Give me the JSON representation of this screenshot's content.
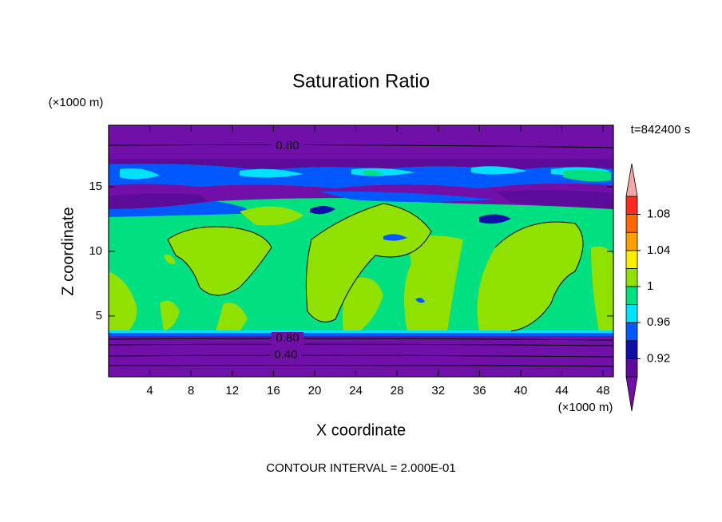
{
  "chart_data": {
    "type": "contour",
    "title": "Saturation Ratio",
    "x_label": "X coordinate",
    "y_label": "Z coordinate",
    "x_unit": "(×1000 m)",
    "y_unit": "(×1000 m)",
    "time_label": "t=842400 s",
    "footer": "CONTOUR INTERVAL = 2.000E-01",
    "xlim": [
      0,
      49
    ],
    "ylim": [
      0.3,
      19.75
    ],
    "xticks": [
      4,
      8,
      12,
      16,
      20,
      24,
      28,
      32,
      36,
      40,
      44,
      48
    ],
    "yticks": [
      5,
      10,
      15
    ],
    "contour_labels": [
      {
        "value": 0.8,
        "label": "0.80"
      },
      {
        "value": 0.8,
        "label": "0.80"
      },
      {
        "value": 0.4,
        "label": "0.40"
      }
    ],
    "colorbar": {
      "levels": [
        0.9,
        0.92,
        0.94,
        0.96,
        0.98,
        1,
        1.02,
        1.04,
        1.06,
        1.08,
        1.1
      ],
      "colors": [
        "#5c0c98",
        "#1010a8",
        "#0058ff",
        "#00e0ff",
        "#00e080",
        "#90e000",
        "#ffee00",
        "#ffa000",
        "#ff6a00",
        "#ff2a20"
      ],
      "under_color": "#7010a8",
      "over_color": "#f0a8a8",
      "ticks": [
        0.92,
        0.96,
        1,
        1.04,
        1.08
      ]
    }
  }
}
